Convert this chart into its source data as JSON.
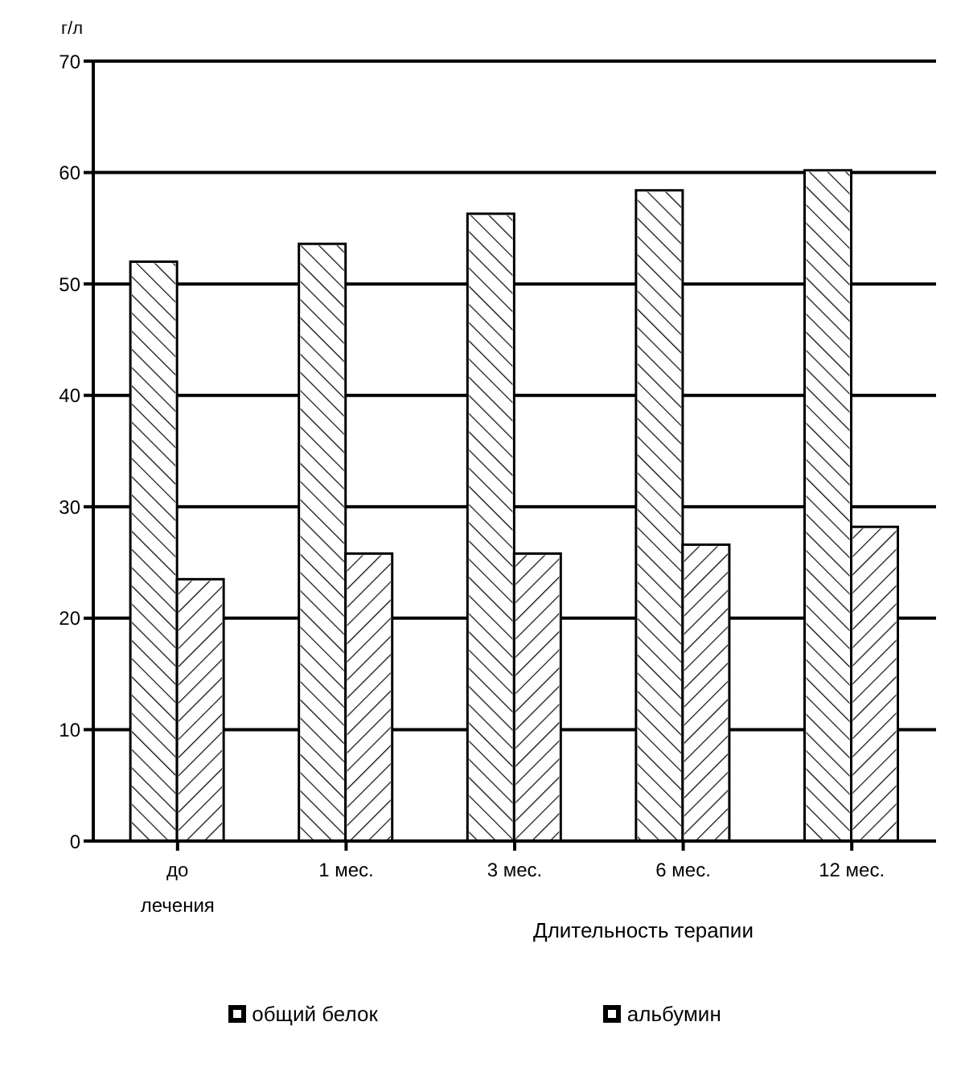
{
  "chart_data": {
    "type": "bar",
    "ylabel": "г/л",
    "xlabel": "Длительность терапии",
    "categories": [
      "до лечения",
      "1 мес.",
      "3 мес.",
      "6 мес.",
      "12 мес."
    ],
    "series": [
      {
        "name": "общий белок",
        "color": "#ffffff",
        "values": [
          52,
          53.6,
          56.3,
          58.4,
          60.2
        ]
      },
      {
        "name": "альбумин",
        "color": "#ffffff",
        "values": [
          23.5,
          25.8,
          25.8,
          26.6,
          28.2
        ]
      }
    ],
    "ylim": [
      0,
      70
    ],
    "yticks": [
      0,
      10,
      20,
      30,
      40,
      50,
      60,
      70
    ],
    "grid": "y",
    "legend": "bottom"
  }
}
